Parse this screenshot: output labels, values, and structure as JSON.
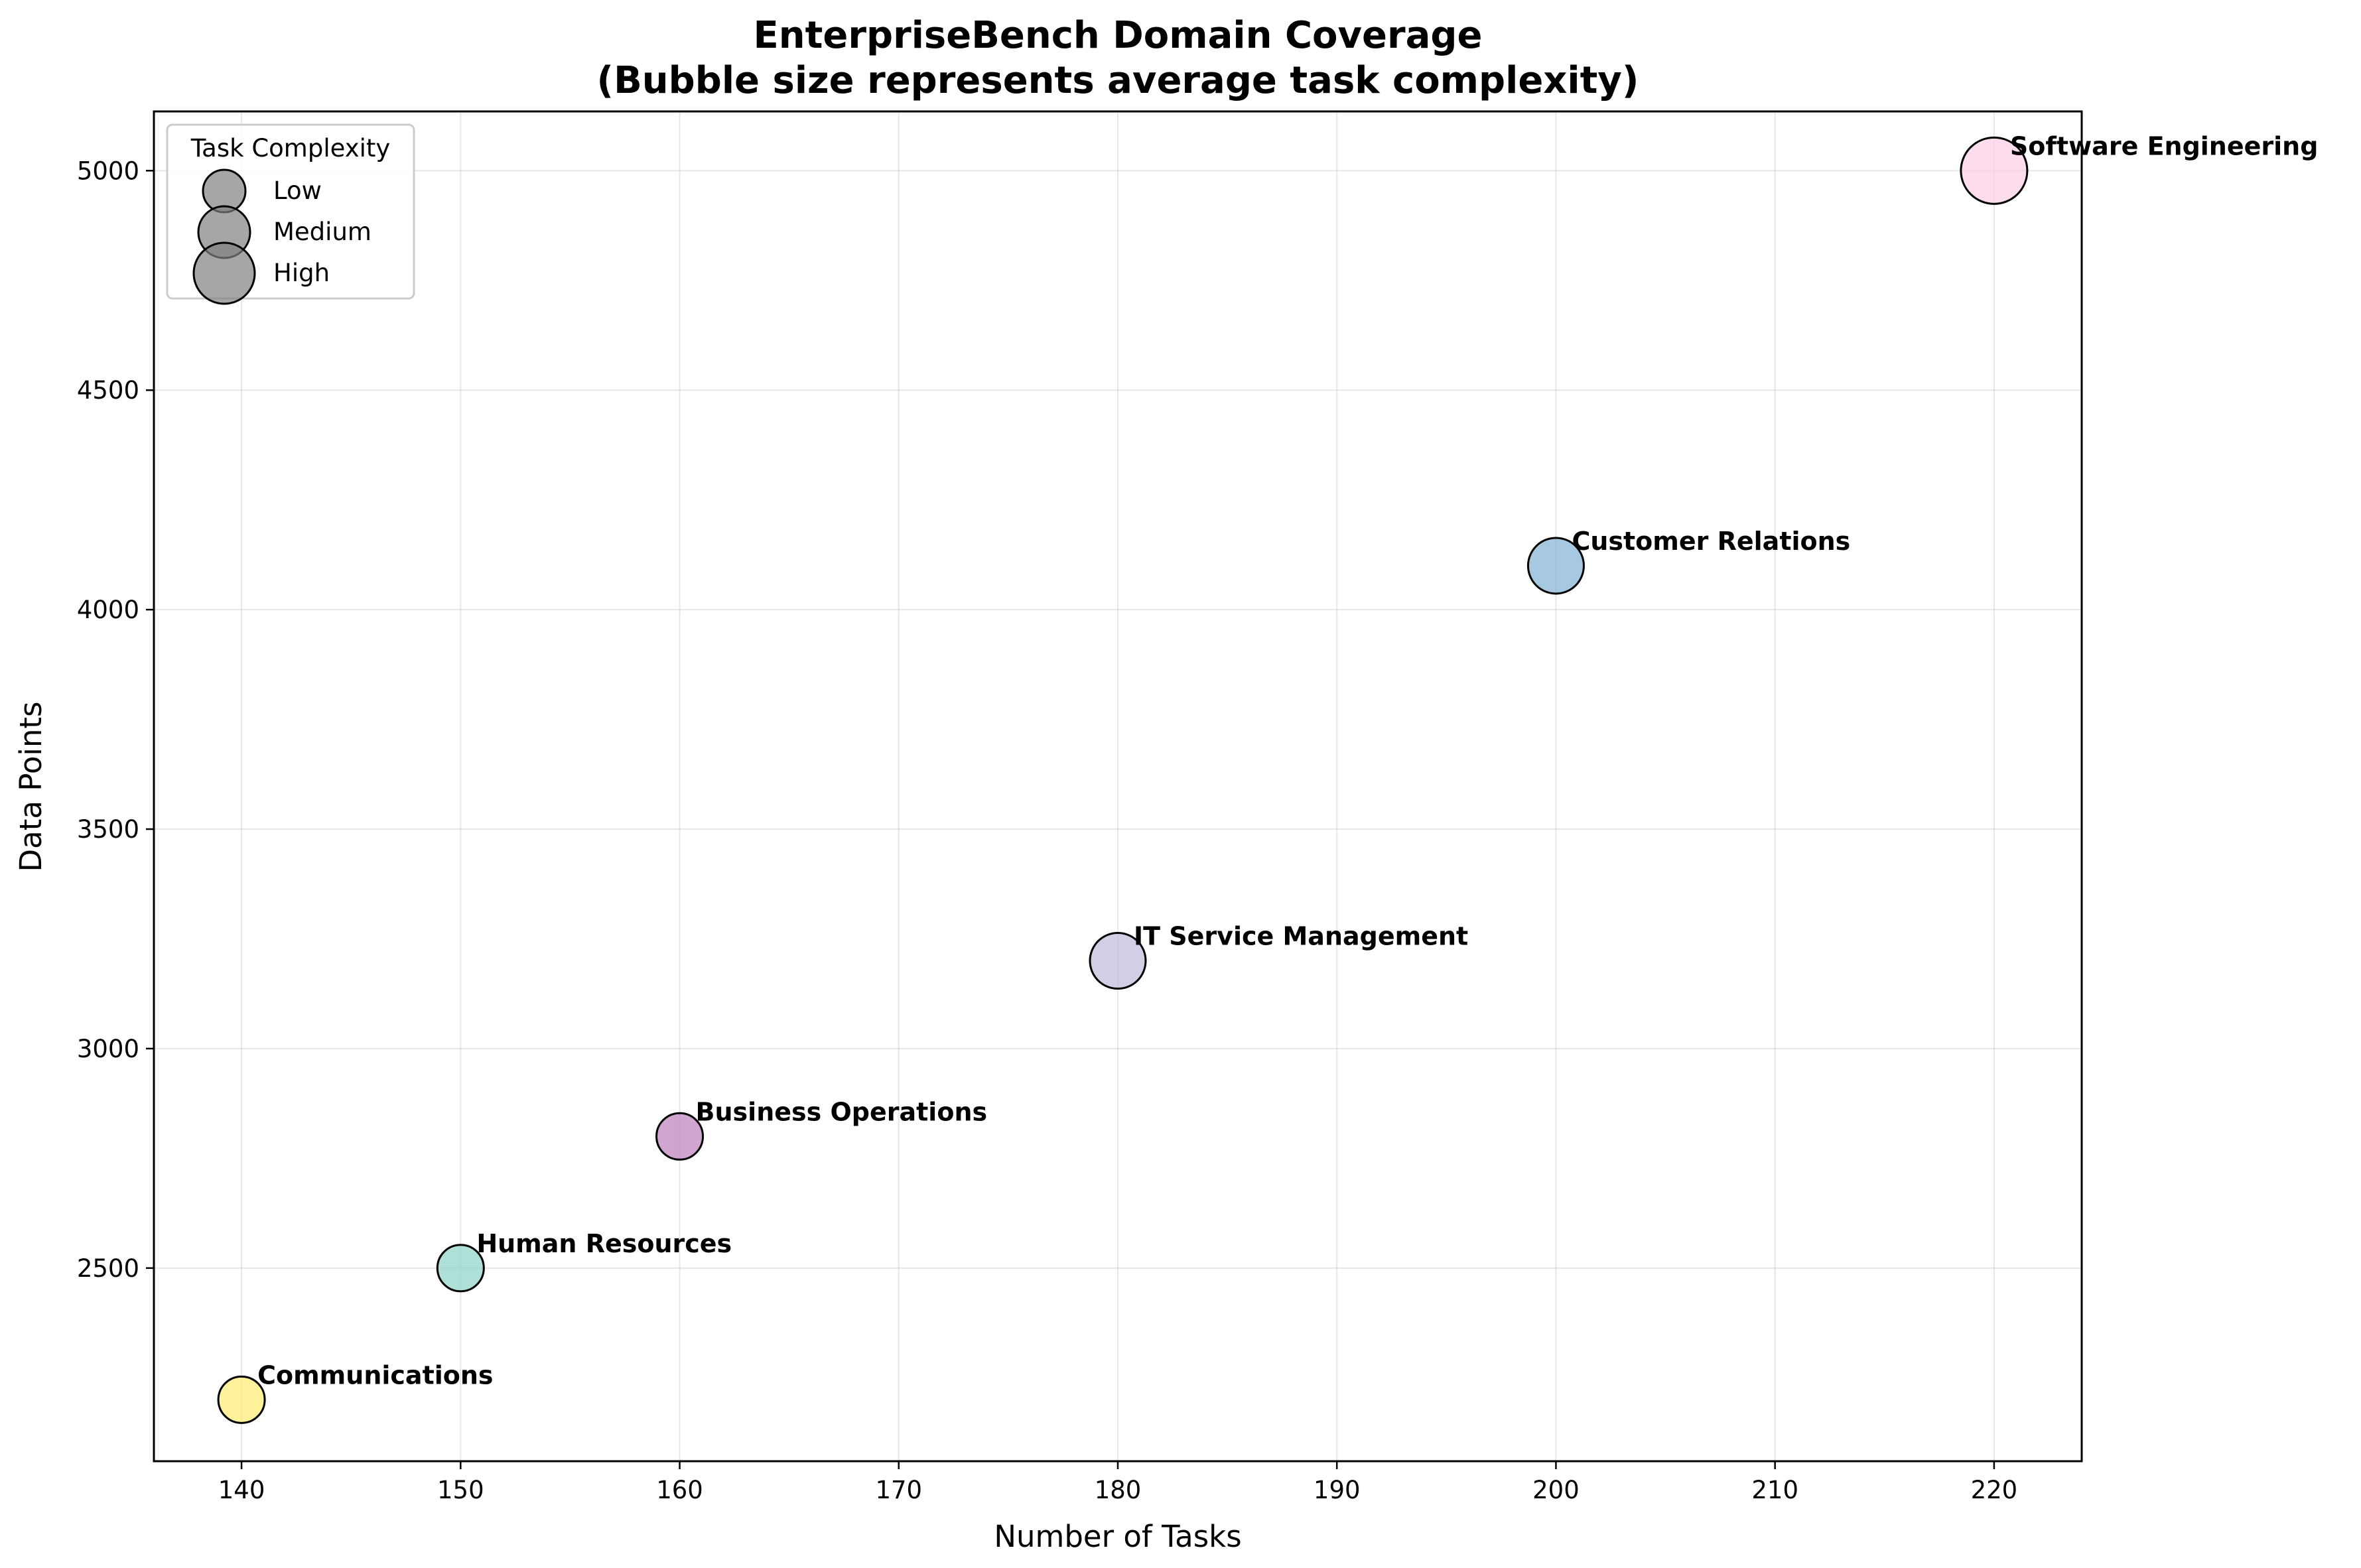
{
  "chart_data": {
    "type": "scatter",
    "title": "EnterpriseBench Domain Coverage",
    "subtitle": "(Bubble size represents average task complexity)",
    "xlabel": "Number of Tasks",
    "ylabel": "Data Points",
    "xlim": [
      136,
      224
    ],
    "ylim": [
      2060,
      5135
    ],
    "xticks": [
      140,
      150,
      160,
      170,
      180,
      190,
      200,
      210,
      220
    ],
    "yticks": [
      2500,
      3000,
      3500,
      4000,
      4500,
      5000
    ],
    "grid": true,
    "legend": {
      "title": "Task Complexity",
      "placement": "top-left",
      "entries": [
        {
          "label": "Low",
          "complexity": "low"
        },
        {
          "label": "Medium",
          "complexity": "medium"
        },
        {
          "label": "High",
          "complexity": "high"
        }
      ]
    },
    "points": [
      {
        "label": "Communications",
        "x": 140,
        "y": 2200,
        "complexity": "low",
        "color": "#ffed6f"
      },
      {
        "label": "Human Resources",
        "x": 150,
        "y": 2500,
        "complexity": "low",
        "color": "#8dd3c7"
      },
      {
        "label": "Business Operations",
        "x": 160,
        "y": 2800,
        "complexity": "low",
        "color": "#bc80bd"
      },
      {
        "label": "IT Service Management",
        "x": 180,
        "y": 3200,
        "complexity": "medium",
        "color": "#bebada"
      },
      {
        "label": "Customer Relations",
        "x": 200,
        "y": 4100,
        "complexity": "medium",
        "color": "#80b1d3"
      },
      {
        "label": "Software Engineering",
        "x": 220,
        "y": 5000,
        "complexity": "high",
        "color": "#fccde5"
      }
    ]
  }
}
